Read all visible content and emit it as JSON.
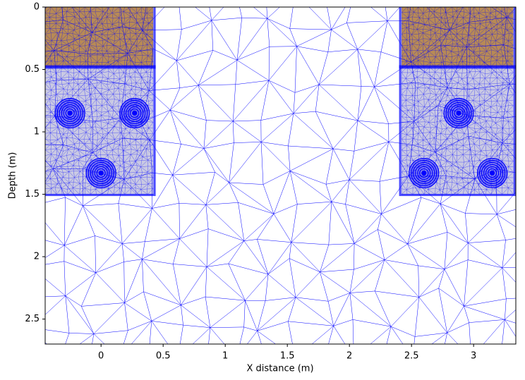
{
  "chart_data": {
    "type": "mesh",
    "x_label": "X distance (m)",
    "y_label": "Depth (m)",
    "xlim": [
      -0.45,
      3.34
    ],
    "ylim": [
      2.7,
      0
    ],
    "xticks": [
      0,
      0.5,
      1,
      1.5,
      2,
      2.5,
      3
    ],
    "yticks": [
      0,
      0.5,
      1,
      1.5,
      2,
      2.5
    ],
    "regions": [
      {
        "x": [
          -0.45,
          0.42
        ],
        "y": [
          0,
          0.48
        ],
        "color": "#b88a55"
      },
      {
        "x": [
          -0.45,
          0.42
        ],
        "y": [
          0.48,
          1.5
        ],
        "color": "#c9c9e3"
      },
      {
        "x": [
          2.42,
          3.32
        ],
        "y": [
          0,
          0.48
        ],
        "color": "#b88a55"
      },
      {
        "x": [
          2.42,
          3.32
        ],
        "y": [
          0.48,
          1.5
        ],
        "color": "#c9c9e3"
      }
    ],
    "cables": {
      "x": [
        -0.25,
        0.27,
        0.0,
        2.88,
        2.6,
        3.15
      ],
      "y": [
        0.85,
        0.85,
        1.33,
        0.85,
        1.33,
        1.33
      ],
      "color": "#0000ff"
    },
    "mesh_color": "#0000ff"
  }
}
